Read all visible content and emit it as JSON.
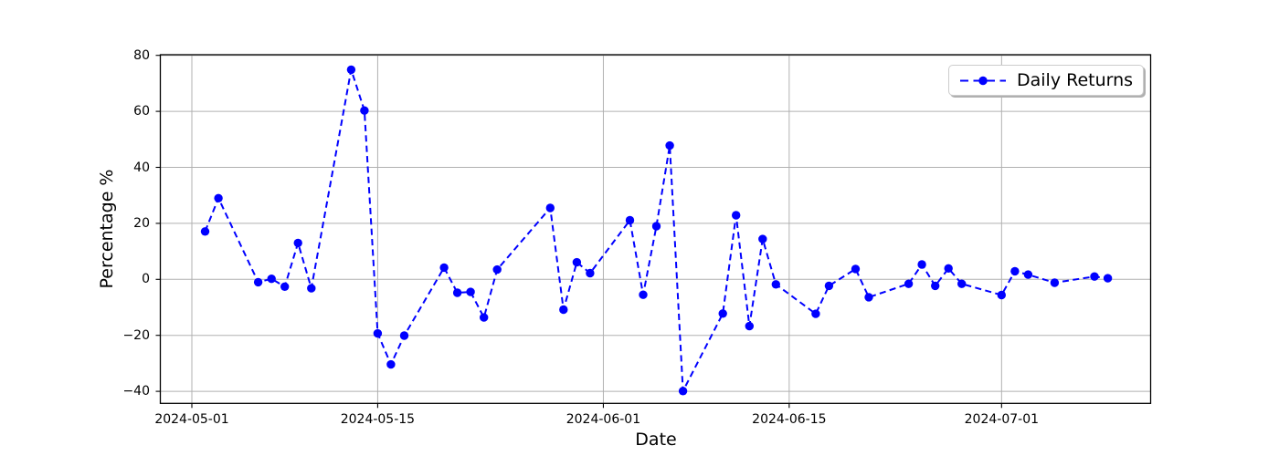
{
  "chart_data": {
    "type": "line",
    "title": "",
    "xlabel": "Date",
    "ylabel": "Percentage %",
    "grid": true,
    "legend": {
      "label": "Daily Returns",
      "position": "upper right"
    },
    "colors": {
      "line": "#0000ff",
      "marker": "#0000ff",
      "grid": "#b0b0b0",
      "axis": "#000000",
      "background": "#ffffff",
      "legend_border": "#cccccc"
    },
    "line_style": "dashed",
    "marker": "circle",
    "x_axis": {
      "start_date": "2024-05-01",
      "tick_dates": [
        "2024-05-01",
        "2024-05-15",
        "2024-06-01",
        "2024-06-15",
        "2024-07-01"
      ],
      "tick_labels": [
        "2024-05-01",
        "2024-05-15",
        "2024-06-01",
        "2024-06-15",
        "2024-07-01"
      ],
      "xlim_days_from_start": [
        -2.34,
        72.31
      ]
    },
    "y_axis": {
      "tick_values": [
        80,
        60,
        40,
        20,
        0,
        -20,
        -40
      ],
      "tick_labels": [
        "80",
        "60",
        "40",
        "20",
        "0",
        "−20",
        "−40"
      ],
      "ylim": [
        -44.4,
        80.2
      ]
    },
    "series": [
      {
        "name": "Daily Returns",
        "points": [
          {
            "date": "2024-05-02",
            "value": 17.1
          },
          {
            "date": "2024-05-03",
            "value": 29.0
          },
          {
            "date": "2024-05-06",
            "value": -1.0
          },
          {
            "date": "2024-05-07",
            "value": 0.2
          },
          {
            "date": "2024-05-08",
            "value": -2.6
          },
          {
            "date": "2024-05-09",
            "value": 13.0
          },
          {
            "date": "2024-05-10",
            "value": -3.2
          },
          {
            "date": "2024-05-13",
            "value": 74.9
          },
          {
            "date": "2024-05-14",
            "value": 60.3
          },
          {
            "date": "2024-05-15",
            "value": -19.3
          },
          {
            "date": "2024-05-16",
            "value": -30.4
          },
          {
            "date": "2024-05-17",
            "value": -20.1
          },
          {
            "date": "2024-05-20",
            "value": 4.2
          },
          {
            "date": "2024-05-21",
            "value": -4.8
          },
          {
            "date": "2024-05-22",
            "value": -4.5
          },
          {
            "date": "2024-05-23",
            "value": -13.6
          },
          {
            "date": "2024-05-24",
            "value": 3.5
          },
          {
            "date": "2024-05-28",
            "value": 25.5
          },
          {
            "date": "2024-05-29",
            "value": -10.8
          },
          {
            "date": "2024-05-30",
            "value": 6.1
          },
          {
            "date": "2024-05-31",
            "value": 2.2
          },
          {
            "date": "2024-06-03",
            "value": 21.1
          },
          {
            "date": "2024-06-04",
            "value": -5.5
          },
          {
            "date": "2024-06-05",
            "value": 19.0
          },
          {
            "date": "2024-06-06",
            "value": 47.8
          },
          {
            "date": "2024-06-07",
            "value": -39.9
          },
          {
            "date": "2024-06-10",
            "value": -12.2
          },
          {
            "date": "2024-06-11",
            "value": 22.9
          },
          {
            "date": "2024-06-12",
            "value": -16.7
          },
          {
            "date": "2024-06-13",
            "value": 14.4
          },
          {
            "date": "2024-06-14",
            "value": -1.8
          },
          {
            "date": "2024-06-17",
            "value": -12.3
          },
          {
            "date": "2024-06-18",
            "value": -2.3
          },
          {
            "date": "2024-06-20",
            "value": 3.7
          },
          {
            "date": "2024-06-21",
            "value": -6.4
          },
          {
            "date": "2024-06-24",
            "value": -1.6
          },
          {
            "date": "2024-06-25",
            "value": 5.3
          },
          {
            "date": "2024-06-26",
            "value": -2.3
          },
          {
            "date": "2024-06-27",
            "value": 3.9
          },
          {
            "date": "2024-06-28",
            "value": -1.6
          },
          {
            "date": "2024-07-01",
            "value": -5.6
          },
          {
            "date": "2024-07-02",
            "value": 2.9
          },
          {
            "date": "2024-07-03",
            "value": 1.7
          },
          {
            "date": "2024-07-05",
            "value": -1.2
          },
          {
            "date": "2024-07-08",
            "value": 1.0
          },
          {
            "date": "2024-07-09",
            "value": 0.4
          }
        ]
      }
    ]
  }
}
